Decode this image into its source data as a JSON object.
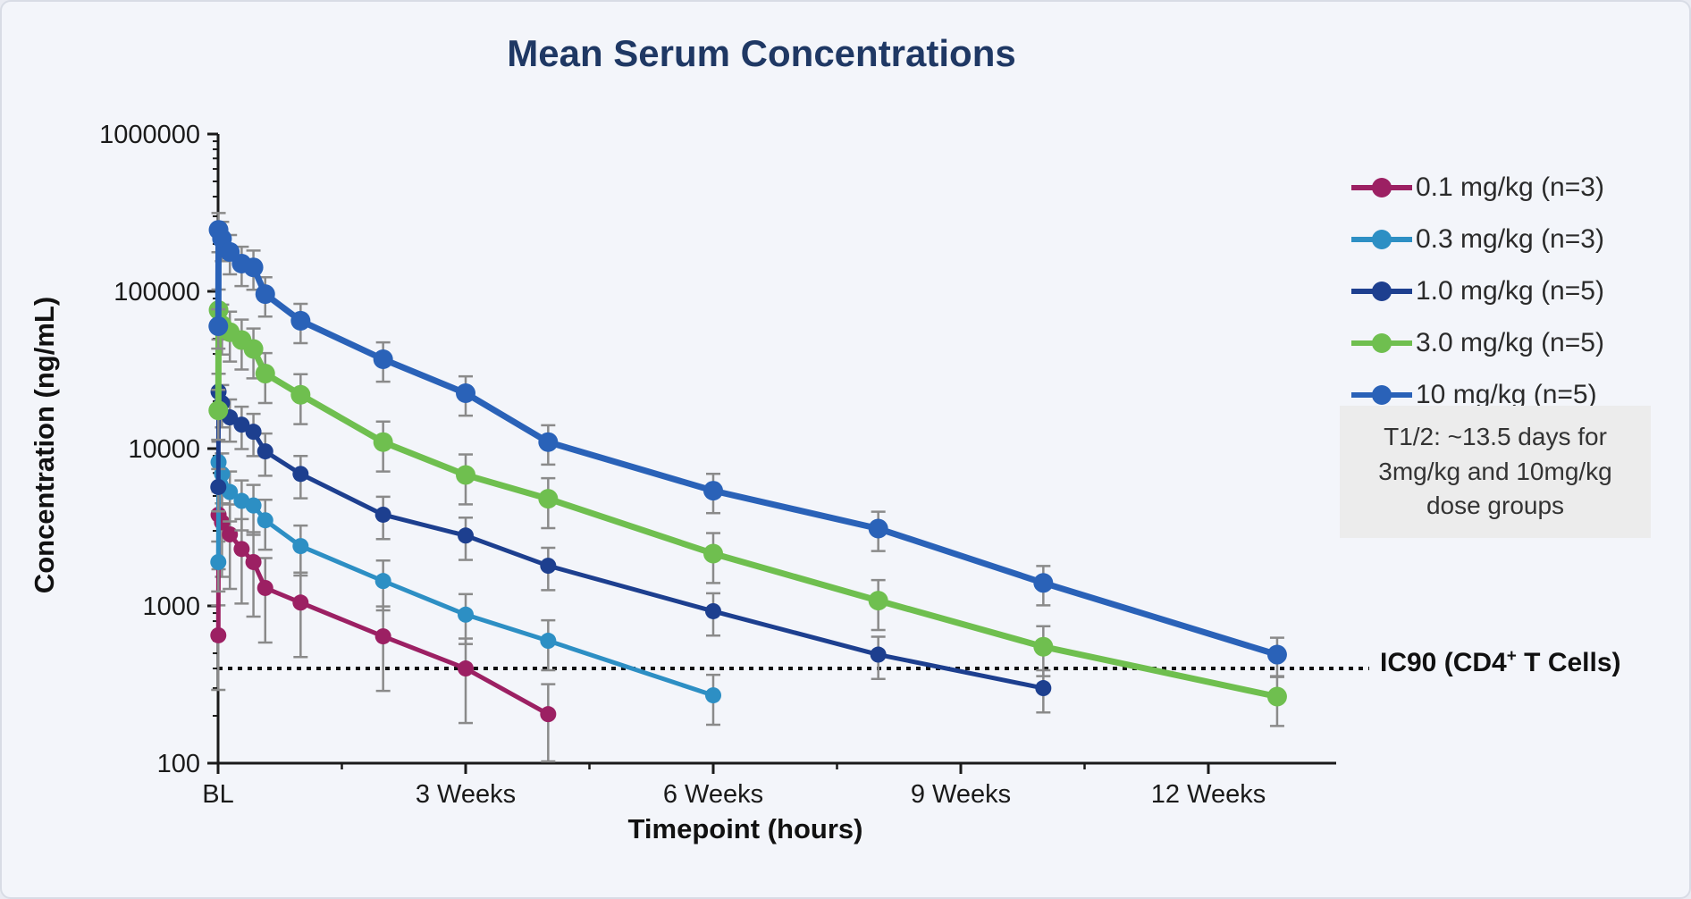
{
  "page": {
    "background_color": "#f3f5fa",
    "border_color": "#d8dce5"
  },
  "title": {
    "text": "Mean Serum Concentrations",
    "color": "#1f3864"
  },
  "chart_data": {
    "type": "line",
    "title": "Mean Serum Concentrations",
    "xlabel": "Timepoint (hours)",
    "ylabel": "Concentration (ng/mL)",
    "y_scale": "log10",
    "ylim": [
      100,
      1000000
    ],
    "y_ticks": [
      {
        "value": 100,
        "label": "100"
      },
      {
        "value": 1000,
        "label": "1000"
      },
      {
        "value": 10000,
        "label": "10000"
      },
      {
        "value": 100000,
        "label": "100000"
      },
      {
        "value": 1000000,
        "label": "1000000"
      }
    ],
    "x_ticks": [
      {
        "hours": 0,
        "label": "BL"
      },
      {
        "hours": 504,
        "label": "3 Weeks"
      },
      {
        "hours": 1008,
        "label": "6 Weeks"
      },
      {
        "hours": 1512,
        "label": "9 Weeks"
      },
      {
        "hours": 2016,
        "label": "12 Weeks"
      }
    ],
    "x_minor_tick_hours": [
      252,
      756,
      1260,
      1764
    ],
    "xlim_hours": [
      0,
      2270
    ],
    "grid": false,
    "legend_position": "right",
    "axis_color": "#1a1a1a",
    "error_bar_color": "#8a8a8a",
    "series": [
      {
        "name": "0.1 mg/kg (n=3)",
        "color": "#9c2063",
        "marker_radius": 9,
        "line_width": 5,
        "err_frac": 0.55,
        "x_hours": [
          0.5,
          1,
          8,
          24,
          48,
          72,
          96,
          168,
          336,
          504,
          672
        ],
        "values": [
          650,
          3800,
          3400,
          2850,
          2300,
          1900,
          1300,
          1050,
          640,
          400,
          205
        ]
      },
      {
        "name": "0.3 mg/kg (n=3)",
        "color": "#2d8fc4",
        "marker_radius": 9,
        "line_width": 5,
        "err_frac": 0.35,
        "x_hours": [
          0.5,
          1,
          8,
          24,
          48,
          72,
          96,
          168,
          336,
          504,
          672,
          1008
        ],
        "values": [
          1900,
          8200,
          6900,
          5300,
          4650,
          4350,
          3500,
          2400,
          1440,
          880,
          600,
          270
        ]
      },
      {
        "name": "1.0 mg/kg (n=5)",
        "color": "#1d3f8f",
        "marker_radius": 9,
        "line_width": 5,
        "err_frac": 0.3,
        "x_hours": [
          0.5,
          1,
          8,
          24,
          48,
          72,
          96,
          168,
          336,
          504,
          672,
          1008,
          1344,
          1680
        ],
        "values": [
          5700,
          23000,
          19500,
          15800,
          14200,
          12800,
          9600,
          6900,
          3800,
          2800,
          1800,
          925,
          490,
          300
        ]
      },
      {
        "name": "3.0 mg/kg (n=5)",
        "color": "#6fbf4f",
        "marker_radius": 11,
        "line_width": 7,
        "err_frac": 0.35,
        "x_hours": [
          0.5,
          1,
          8,
          24,
          48,
          72,
          96,
          168,
          336,
          504,
          672,
          1008,
          1344,
          1680,
          2156
        ],
        "values": [
          17500,
          76000,
          61000,
          55000,
          49000,
          43000,
          30000,
          22000,
          11000,
          6800,
          4800,
          2150,
          1080,
          550,
          265
        ]
      },
      {
        "name": "10 mg/kg (n=5)",
        "color": "#2a62b8",
        "marker_radius": 11,
        "line_width": 7,
        "err_frac": 0.28,
        "x_hours": [
          0.5,
          1,
          8,
          24,
          48,
          72,
          96,
          168,
          336,
          504,
          672,
          1008,
          1344,
          1680,
          2156
        ],
        "values": [
          60000,
          246000,
          216000,
          178000,
          150000,
          142000,
          96000,
          65000,
          37000,
          22500,
          11000,
          5400,
          3100,
          1400,
          490
        ]
      }
    ],
    "reference_line": {
      "value": 400,
      "style": "dotted",
      "color": "#111111",
      "label": "IC90 (CD4+ T Cells)"
    }
  },
  "labels": {
    "y_axis_title": "Concentration (ng/mL)",
    "x_axis_title": "Timepoint (hours)"
  },
  "ic90_label": {
    "prefix": "IC90 (CD4",
    "sup": "+",
    "suffix": " T Cells)"
  },
  "annotation": {
    "text": "T1/2: ~13.5 days for 3mg/kg and 10mg/kg dose groups",
    "background": "#ececec"
  }
}
